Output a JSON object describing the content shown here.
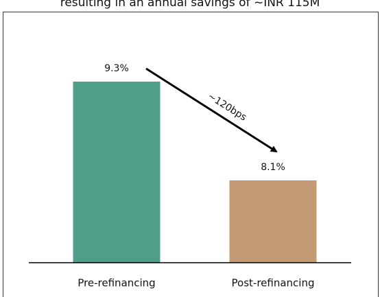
{
  "chart_data": {
    "type": "bar",
    "title": "resulting in an annual savings of ~INR 115M",
    "categories": [
      "Pre-refinancing",
      "Post-refinancing"
    ],
    "values": [
      9.3,
      8.1
    ],
    "value_labels": [
      "9.3%",
      "8.1%"
    ],
    "colors": [
      "#4e9e8a",
      "#c49a74"
    ],
    "annotation": "~120bps",
    "ylim": [
      7.1,
      9.7
    ]
  }
}
